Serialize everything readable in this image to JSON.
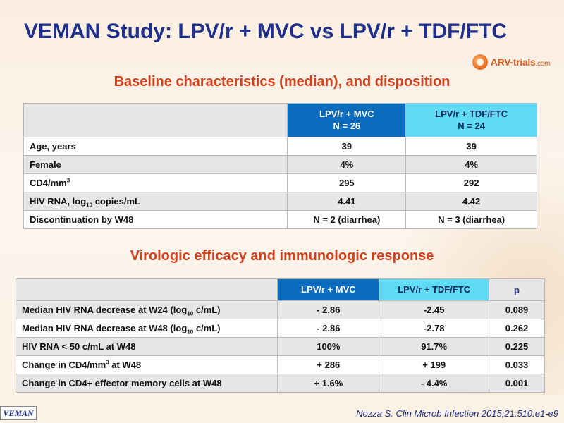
{
  "title": "VEMAN Study: LPV/r + MVC vs LPV/r + TDF/FTC",
  "logo": {
    "text": "ARV-trials",
    "suffix": ".com"
  },
  "section1": {
    "heading": "Baseline characteristics (median), and disposition",
    "col1": {
      "line1": "LPV/r + MVC",
      "line2": "N = 26"
    },
    "col2": {
      "line1": "LPV/r + TDF/FTC",
      "line2": "N = 24"
    },
    "rows": [
      {
        "label": "Age, years",
        "a": "39",
        "b": "39"
      },
      {
        "label": "Female",
        "a": "4%",
        "b": "4%"
      },
      {
        "label_pre": "CD4/mm",
        "label_sup": "3",
        "label_post": "",
        "a": "295",
        "b": "292"
      },
      {
        "label_pre": "HIV RNA, log",
        "label_sub": "10",
        "label_post": " copies/mL",
        "a": "4.41",
        "b": "4.42"
      },
      {
        "label": "Discontinuation by W48",
        "a": "N = 2 (diarrhea)",
        "b": "N = 3 (diarrhea)"
      }
    ]
  },
  "section2": {
    "heading": "Virologic efficacy and immunologic response",
    "headers": {
      "a": "LPV/r + MVC",
      "b": "LPV/r + TDF/FTC",
      "p": "p"
    },
    "rows": [
      {
        "label_pre": "Median HIV RNA decrease at W24 (log",
        "label_sub": "10",
        "label_post": " c/mL)",
        "a": "- 2.86",
        "b": "-2.45",
        "p": "0.089"
      },
      {
        "label_pre": "Median HIV RNA decrease at W48 (log",
        "label_sub": "10",
        "label_post": " c/mL)",
        "a": "- 2.86",
        "b": "-2.78",
        "p": "0.262"
      },
      {
        "label": "HIV RNA < 50 c/mL at W48",
        "a": "100%",
        "b": "91.7%",
        "p": "0.225"
      },
      {
        "label_pre": "Change in CD4/mm",
        "label_sup": "3",
        "label_post": " at W48",
        "a": "+ 286",
        "b": "+ 199",
        "p": "0.033"
      },
      {
        "label": "Change in CD4+ effector memory cells at W48",
        "a": "+ 1.6%",
        "b": "- 4.4%",
        "p": "0.001"
      }
    ]
  },
  "footer": {
    "badge": "VEMAN",
    "reference": "Nozza S. Clin Microb Infection 2015;21:510.e1-e9"
  }
}
